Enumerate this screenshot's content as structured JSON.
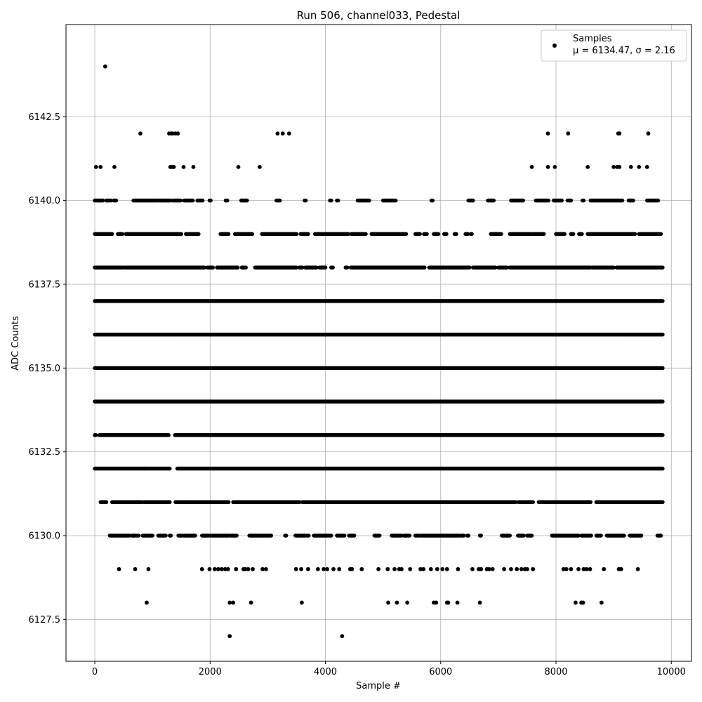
{
  "chart_data": {
    "type": "scatter",
    "title": "Run 506, channel033, Pedestal",
    "xlabel": "Sample #",
    "ylabel": "ADC Counts",
    "xlim": [
      -500,
      10350
    ],
    "ylim": [
      6126.25,
      6145.25
    ],
    "xticks": [
      0,
      2000,
      4000,
      6000,
      8000,
      10000
    ],
    "xtick_labels": [
      "0",
      "2000",
      "4000",
      "6000",
      "8000",
      "10000"
    ],
    "yticks": [
      6127.5,
      6130.0,
      6132.5,
      6135.0,
      6137.5,
      6140.0,
      6142.5
    ],
    "ytick_labels": [
      "6127.5",
      "6130.0",
      "6132.5",
      "6135.0",
      "6137.5",
      "6140.0",
      "6142.5"
    ],
    "grid": true,
    "marker_color": "#000000",
    "legend": {
      "placement": "top-right",
      "label_line1": "Samples",
      "label_line2": "μ = 6134.47, σ = 2.16"
    },
    "series": [
      {
        "name": "Samples",
        "points": [
          [
            180,
            6144
          ],
          [
            790,
            6142
          ],
          [
            1290,
            6142
          ],
          [
            1330,
            6142
          ],
          [
            1350,
            6142
          ],
          [
            1400,
            6142
          ],
          [
            1440,
            6142
          ],
          [
            3170,
            6142
          ],
          [
            3260,
            6142
          ],
          [
            3370,
            6142
          ],
          [
            7860,
            6142
          ],
          [
            8210,
            6142
          ],
          [
            9080,
            6142
          ],
          [
            9100,
            6142
          ],
          [
            9600,
            6142
          ],
          [
            20,
            6141
          ],
          [
            100,
            6141
          ],
          [
            340,
            6141
          ],
          [
            1310,
            6141
          ],
          [
            1340,
            6141
          ],
          [
            1370,
            6141
          ],
          [
            1540,
            6141
          ],
          [
            1710,
            6141
          ],
          [
            2490,
            6141
          ],
          [
            2860,
            6141
          ],
          [
            7580,
            6141
          ],
          [
            7860,
            6141
          ],
          [
            7980,
            6141
          ],
          [
            8550,
            6141
          ],
          [
            9000,
            6141
          ],
          [
            9060,
            6141
          ],
          [
            9100,
            6141
          ],
          [
            9300,
            6141
          ],
          [
            9440,
            6141
          ],
          [
            9580,
            6141
          ],
          [
            900,
            6128
          ],
          [
            2340,
            6128
          ],
          [
            2400,
            6128
          ],
          [
            2710,
            6128
          ],
          [
            3590,
            6128
          ],
          [
            5090,
            6128
          ],
          [
            5240,
            6128
          ],
          [
            5420,
            6128
          ],
          [
            5880,
            6128
          ],
          [
            5920,
            6128
          ],
          [
            6110,
            6128
          ],
          [
            6130,
            6128
          ],
          [
            6290,
            6128
          ],
          [
            6680,
            6128
          ],
          [
            8340,
            6128
          ],
          [
            8440,
            6128
          ],
          [
            8470,
            6128
          ],
          [
            8790,
            6128
          ],
          [
            2340,
            6127
          ],
          [
            4290,
            6127
          ],
          [
            420,
            6129
          ],
          [
            700,
            6129
          ],
          [
            930,
            6129
          ],
          [
            1860,
            6129
          ],
          [
            1990,
            6129
          ],
          [
            2080,
            6129
          ],
          [
            2140,
            6129
          ],
          [
            2200,
            6129
          ],
          [
            2260,
            6129
          ],
          [
            2310,
            6129
          ],
          [
            2450,
            6129
          ],
          [
            2580,
            6129
          ],
          [
            2610,
            6129
          ],
          [
            2660,
            6129
          ],
          [
            2740,
            6129
          ],
          [
            2910,
            6129
          ],
          [
            2970,
            6129
          ],
          [
            3490,
            6129
          ],
          [
            3580,
            6129
          ],
          [
            3700,
            6129
          ],
          [
            3870,
            6129
          ],
          [
            3970,
            6129
          ],
          [
            4030,
            6129
          ],
          [
            4140,
            6129
          ],
          [
            4240,
            6129
          ],
          [
            4430,
            6129
          ],
          [
            4460,
            6129
          ],
          [
            4630,
            6129
          ],
          [
            4920,
            6129
          ],
          [
            5080,
            6129
          ],
          [
            5200,
            6129
          ],
          [
            5280,
            6129
          ],
          [
            5320,
            6129
          ],
          [
            5470,
            6129
          ],
          [
            5650,
            6129
          ],
          [
            5700,
            6129
          ],
          [
            5830,
            6129
          ],
          [
            5940,
            6129
          ],
          [
            6030,
            6129
          ],
          [
            6110,
            6129
          ],
          [
            6300,
            6129
          ],
          [
            6550,
            6129
          ],
          [
            6660,
            6129
          ],
          [
            6700,
            6129
          ],
          [
            6800,
            6129
          ],
          [
            6840,
            6129
          ],
          [
            6900,
            6129
          ],
          [
            7100,
            6129
          ],
          [
            7220,
            6129
          ],
          [
            7320,
            6129
          ],
          [
            7400,
            6129
          ],
          [
            7460,
            6129
          ],
          [
            7500,
            6129
          ],
          [
            7600,
            6129
          ],
          [
            8130,
            6129
          ],
          [
            8180,
            6129
          ],
          [
            8260,
            6129
          ],
          [
            8390,
            6129
          ],
          [
            8480,
            6129
          ],
          [
            8530,
            6129
          ],
          [
            8590,
            6129
          ],
          [
            8830,
            6129
          ],
          [
            9090,
            6129
          ],
          [
            9130,
            6129
          ],
          [
            9420,
            6129
          ]
        ],
        "bands": [
          {
            "y": 6140,
            "xranges": [
              [
                0,
                140
              ],
              [
                200,
                280
              ],
              [
                330,
                370
              ],
              [
                670,
                1100
              ],
              [
                1130,
                1310
              ],
              [
                1350,
                1490
              ],
              [
                1550,
                1700
              ],
              [
                1780,
                1870
              ],
              [
                1990,
                2010
              ],
              [
                2270,
                2300
              ],
              [
                2540,
                2640
              ],
              [
                3150,
                3210
              ],
              [
                3640,
                3660
              ],
              [
                4080,
                4100
              ],
              [
                4200,
                4220
              ],
              [
                4560,
                4760
              ],
              [
                5000,
                5220
              ],
              [
                5840,
                5860
              ],
              [
                6480,
                6560
              ],
              [
                6820,
                6920
              ],
              [
                7220,
                7430
              ],
              [
                7650,
                7870
              ],
              [
                7960,
                8100
              ],
              [
                8200,
                8260
              ],
              [
                8460,
                8480
              ],
              [
                8600,
                9150
              ],
              [
                9260,
                9340
              ],
              [
                9580,
                9770
              ]
            ]
          },
          {
            "y": 6139,
            "xranges": [
              [
                0,
                300
              ],
              [
                400,
                480
              ],
              [
                540,
                1500
              ],
              [
                1580,
                1800
              ],
              [
                2180,
                2320
              ],
              [
                2430,
                2730
              ],
              [
                2900,
                3500
              ],
              [
                3570,
                3700
              ],
              [
                3820,
                4400
              ],
              [
                4450,
                4700
              ],
              [
                4800,
                5400
              ],
              [
                5560,
                5640
              ],
              [
                5710,
                5760
              ],
              [
                5880,
                5960
              ],
              [
                6060,
                6100
              ],
              [
                6240,
                6270
              ],
              [
                6430,
                6470
              ],
              [
                6520,
                6540
              ],
              [
                6870,
                7050
              ],
              [
                7200,
                7570
              ],
              [
                7600,
                7790
              ],
              [
                8000,
                8150
              ],
              [
                8260,
                8300
              ],
              [
                8400,
                8450
              ],
              [
                8550,
                9370
              ],
              [
                9440,
                9820
              ]
            ]
          },
          {
            "y": 6138,
            "xranges": [
              [
                0,
                500
              ],
              [
                530,
                1900
              ],
              [
                1950,
                2050
              ],
              [
                2120,
                2480
              ],
              [
                2550,
                2620
              ],
              [
                2780,
                3500
              ],
              [
                3550,
                3600
              ],
              [
                3650,
                3850
              ],
              [
                3900,
                4000
              ],
              [
                4100,
                4130
              ],
              [
                4350,
                4380
              ],
              [
                4440,
                5720
              ],
              [
                5800,
                6500
              ],
              [
                6560,
                6950
              ],
              [
                7000,
                7150
              ],
              [
                7200,
                8600
              ],
              [
                8630,
                9000
              ],
              [
                9050,
                9850
              ]
            ]
          },
          {
            "y": 6137,
            "xranges": [
              [
                0,
                9850
              ]
            ]
          },
          {
            "y": 6136,
            "xranges": [
              [
                0,
                9850
              ]
            ]
          },
          {
            "y": 6135,
            "xranges": [
              [
                0,
                9850
              ]
            ]
          },
          {
            "y": 6134,
            "xranges": [
              [
                0,
                9850
              ]
            ]
          },
          {
            "y": 6133,
            "xranges": [
              [
                0,
                20
              ],
              [
                80,
                1280
              ],
              [
                1390,
                9850
              ]
            ]
          },
          {
            "y": 6132,
            "xranges": [
              [
                0,
                880
              ],
              [
                880,
                1300
              ],
              [
                1430,
                9850
              ]
            ]
          },
          {
            "y": 6131,
            "xranges": [
              [
                100,
                200
              ],
              [
                300,
                810
              ],
              [
                850,
                1300
              ],
              [
                1400,
                1580
              ],
              [
                1600,
                2320
              ],
              [
                2400,
                3550
              ],
              [
                3600,
                7300
              ],
              [
                7350,
                7600
              ],
              [
                7700,
                8600
              ],
              [
                8700,
                9850
              ]
            ]
          },
          {
            "y": 6130,
            "xranges": [
              [
                260,
                330
              ],
              [
                350,
                600
              ],
              [
                640,
                760
              ],
              [
                830,
                1000
              ],
              [
                1100,
                1230
              ],
              [
                1300,
                1320
              ],
              [
                1450,
                1520
              ],
              [
                1550,
                1740
              ],
              [
                1860,
                1980
              ],
              [
                2010,
                2330
              ],
              [
                2360,
                2460
              ],
              [
                2680,
                3060
              ],
              [
                3300,
                3320
              ],
              [
                3480,
                3650
              ],
              [
                3680,
                3710
              ],
              [
                3800,
                4100
              ],
              [
                4200,
                4330
              ],
              [
                4410,
                4500
              ],
              [
                4850,
                4940
              ],
              [
                5150,
                5320
              ],
              [
                5360,
                5460
              ],
              [
                5560,
                5630
              ],
              [
                5660,
                6320
              ],
              [
                6350,
                6400
              ],
              [
                6460,
                6480
              ],
              [
                6680,
                6700
              ],
              [
                7060,
                7200
              ],
              [
                7340,
                7440
              ],
              [
                7500,
                7580
              ],
              [
                7930,
                8390
              ],
              [
                8440,
                8610
              ],
              [
                8700,
                8780
              ],
              [
                8880,
                9180
              ],
              [
                9280,
                9480
              ],
              [
                9760,
                9820
              ]
            ]
          }
        ]
      }
    ]
  }
}
